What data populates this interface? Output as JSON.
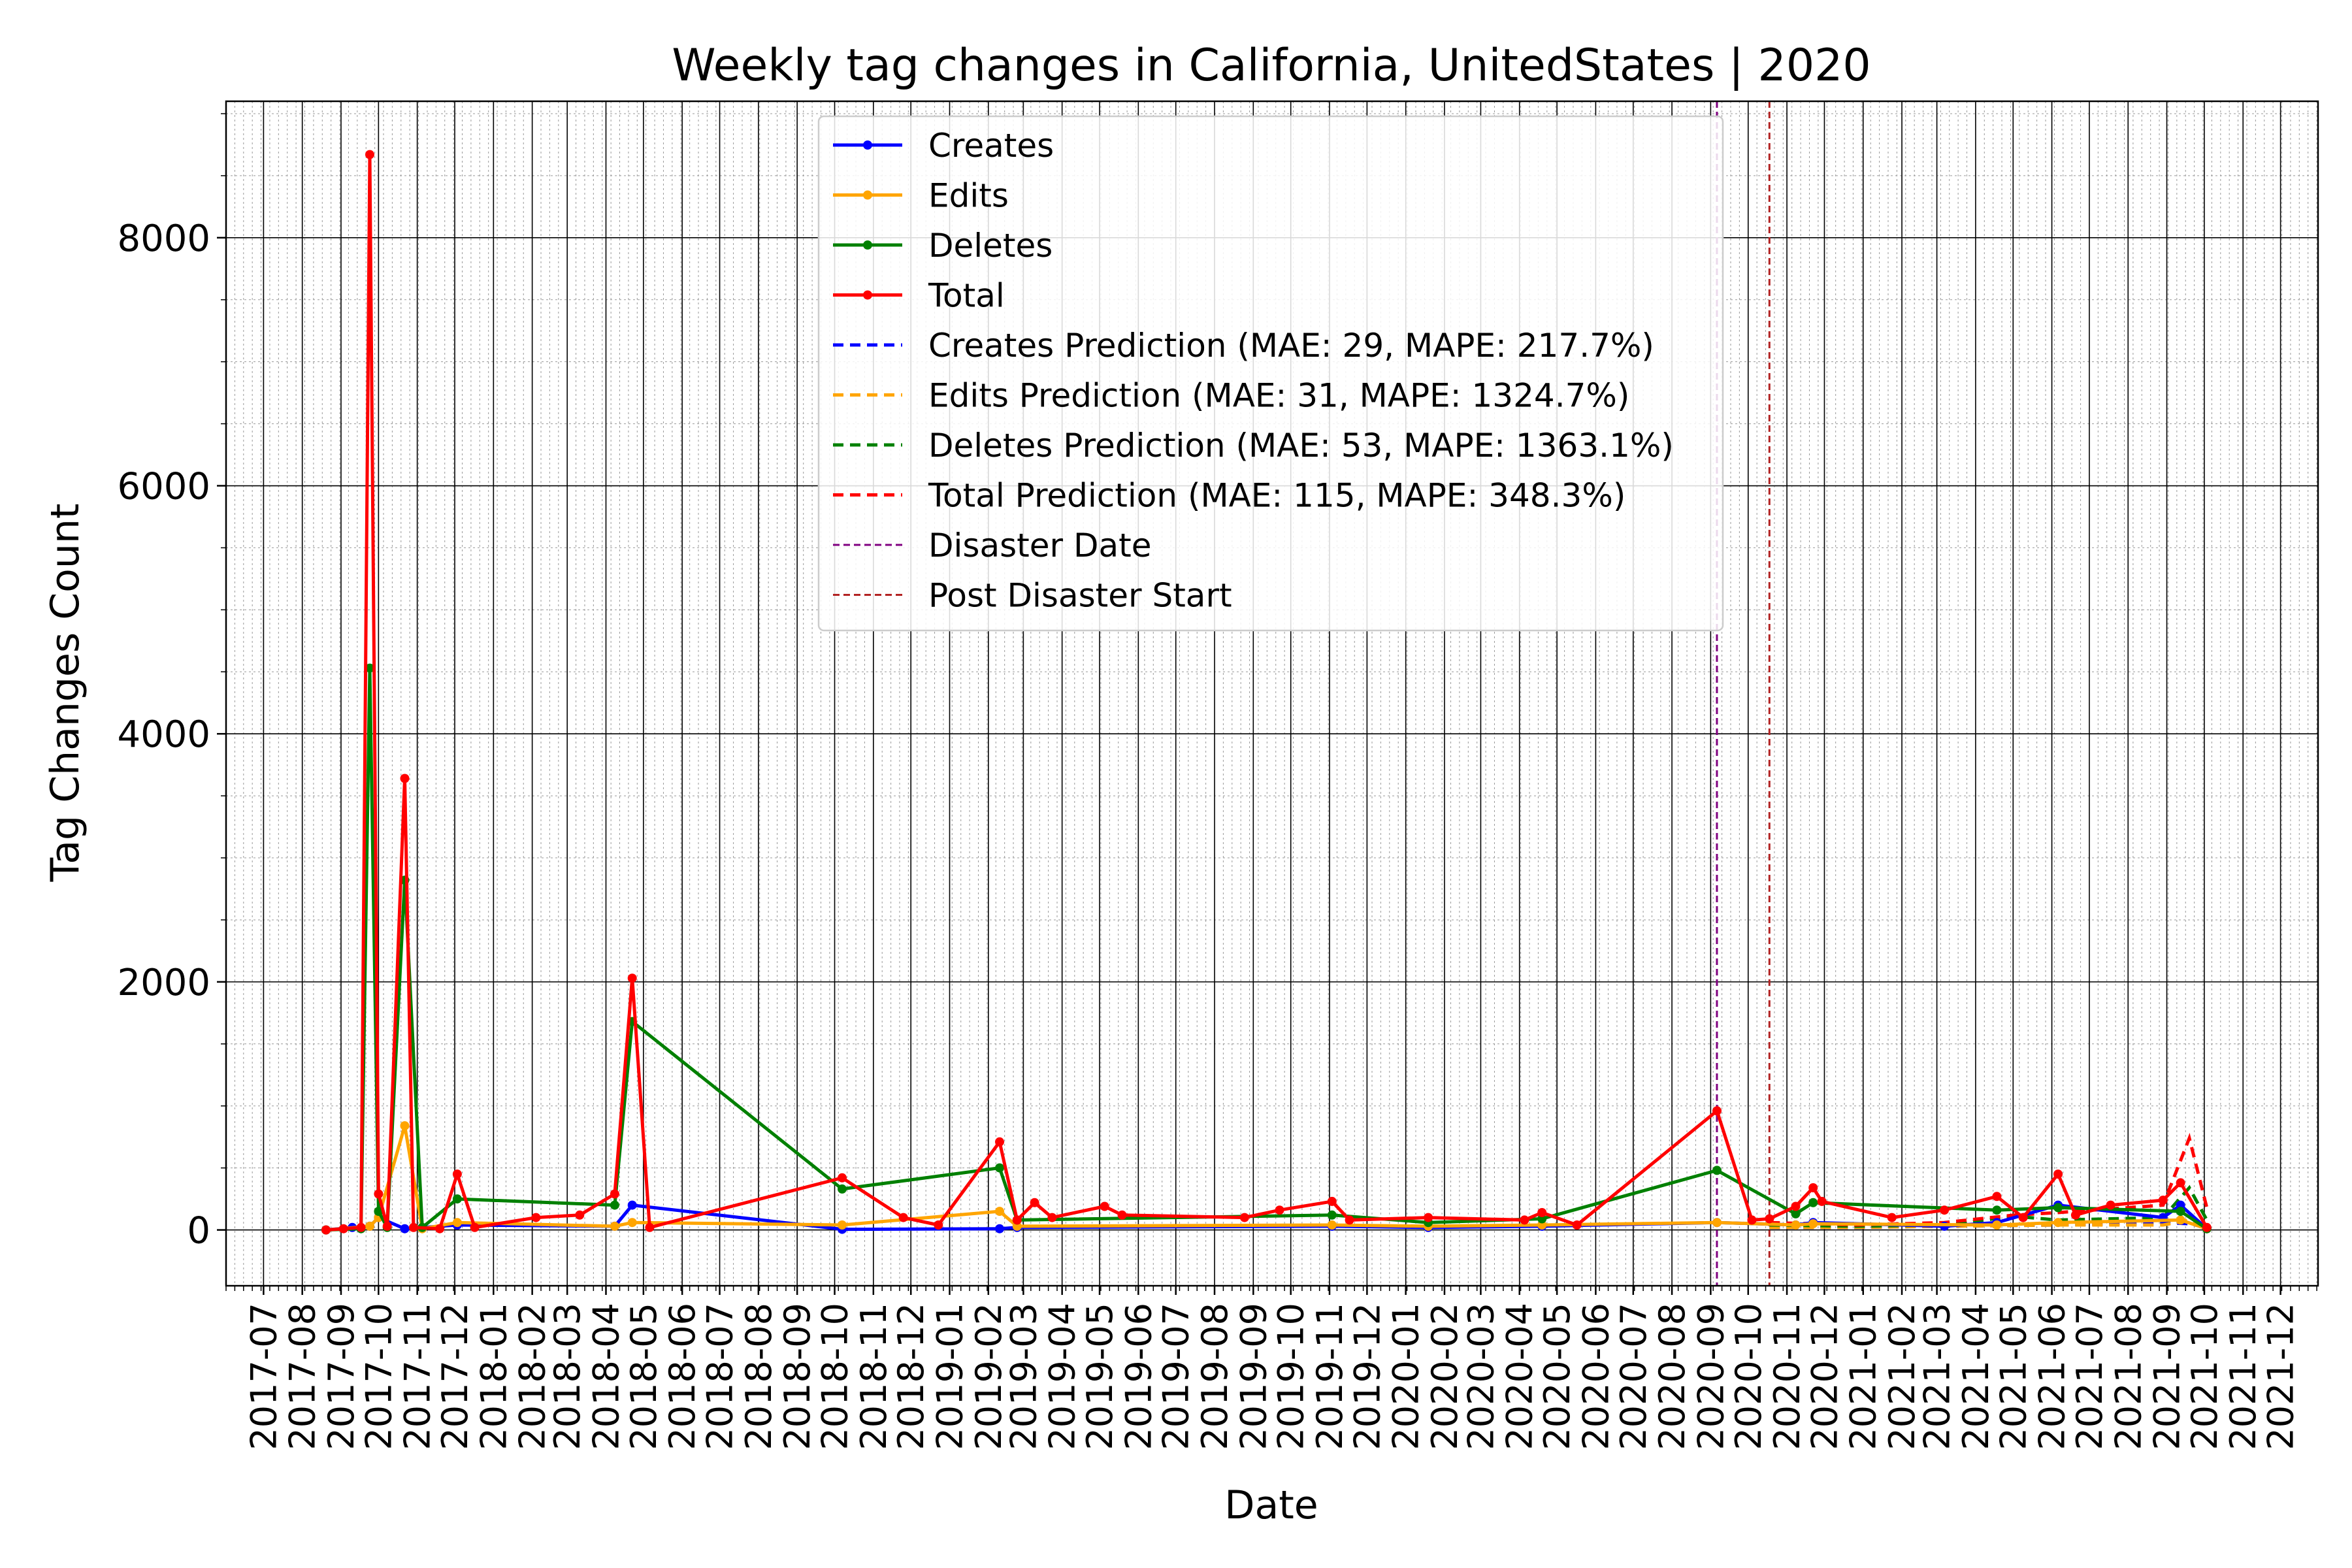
{
  "chart_data": {
    "type": "line",
    "title": "Weekly tag changes in California, UnitedStates | 2020",
    "xlabel": "Date",
    "ylabel": "Tag Changes Count",
    "ylim": [
      -450,
      9100
    ],
    "xlim": [
      "2017-06-01",
      "2021-12-31"
    ],
    "yticks": [
      0,
      2000,
      4000,
      6000,
      8000
    ],
    "xticks": [
      "2017-07",
      "2017-08",
      "2017-09",
      "2017-10",
      "2017-11",
      "2017-12",
      "2018-01",
      "2018-02",
      "2018-03",
      "2018-04",
      "2018-05",
      "2018-06",
      "2018-07",
      "2018-08",
      "2018-09",
      "2018-10",
      "2018-11",
      "2018-12",
      "2019-01",
      "2019-02",
      "2019-03",
      "2019-04",
      "2019-05",
      "2019-06",
      "2019-07",
      "2019-08",
      "2019-09",
      "2019-10",
      "2019-11",
      "2019-12",
      "2020-01",
      "2020-02",
      "2020-03",
      "2020-04",
      "2020-05",
      "2020-06",
      "2020-07",
      "2020-08",
      "2020-09",
      "2020-10",
      "2020-11",
      "2020-12",
      "2021-01",
      "2021-02",
      "2021-03",
      "2021-04",
      "2021-05",
      "2021-06",
      "2021-07",
      "2021-08",
      "2021-09",
      "2021-10",
      "2021-11",
      "2021-12"
    ],
    "grid": true,
    "legend_placement": "upper-center",
    "disaster_date": "2020-09-06",
    "post_disaster_start": "2020-10-18",
    "series": [
      {
        "name": "Creates",
        "color": "#0000ff",
        "style": "solid-marker",
        "points": [
          [
            "2017-08-20",
            0
          ],
          [
            "2017-09-10",
            20
          ],
          [
            "2017-09-24",
            30
          ],
          [
            "2017-10-01",
            100
          ],
          [
            "2017-10-22",
            10
          ],
          [
            "2017-12-03",
            40
          ],
          [
            "2018-04-08",
            30
          ],
          [
            "2018-04-22",
            200
          ],
          [
            "2018-10-07",
            5
          ],
          [
            "2019-02-10",
            10
          ],
          [
            "2019-02-24",
            20
          ],
          [
            "2019-11-03",
            30
          ],
          [
            "2020-01-19",
            20
          ],
          [
            "2020-04-19",
            30
          ],
          [
            "2020-09-06",
            60
          ],
          [
            "2020-11-08",
            40
          ],
          [
            "2020-11-22",
            60
          ],
          [
            "2021-03-07",
            30
          ],
          [
            "2021-04-18",
            60
          ],
          [
            "2021-06-06",
            200
          ],
          [
            "2021-08-29",
            100
          ],
          [
            "2021-09-12",
            200
          ],
          [
            "2021-10-03",
            10
          ]
        ]
      },
      {
        "name": "Edits",
        "color": "#ffa500",
        "style": "solid-marker",
        "points": [
          [
            "2017-08-20",
            0
          ],
          [
            "2017-09-24",
            30
          ],
          [
            "2017-10-01",
            100
          ],
          [
            "2017-10-22",
            840
          ],
          [
            "2017-11-05",
            10
          ],
          [
            "2017-12-03",
            60
          ],
          [
            "2018-04-08",
            30
          ],
          [
            "2018-04-22",
            60
          ],
          [
            "2018-10-07",
            40
          ],
          [
            "2019-02-10",
            150
          ],
          [
            "2019-02-24",
            30
          ],
          [
            "2019-11-03",
            40
          ],
          [
            "2020-01-19",
            30
          ],
          [
            "2020-04-19",
            40
          ],
          [
            "2020-09-06",
            60
          ],
          [
            "2020-11-08",
            40
          ],
          [
            "2020-11-22",
            50
          ],
          [
            "2021-04-18",
            40
          ],
          [
            "2021-06-06",
            60
          ],
          [
            "2021-09-12",
            80
          ],
          [
            "2021-10-03",
            10
          ]
        ]
      },
      {
        "name": "Deletes",
        "color": "#008000",
        "style": "solid-marker",
        "points": [
          [
            "2017-08-20",
            0
          ],
          [
            "2017-09-17",
            10
          ],
          [
            "2017-09-24",
            4530
          ],
          [
            "2017-10-01",
            150
          ],
          [
            "2017-10-08",
            20
          ],
          [
            "2017-10-22",
            2820
          ],
          [
            "2017-11-05",
            20
          ],
          [
            "2017-12-03",
            250
          ],
          [
            "2018-04-08",
            200
          ],
          [
            "2018-04-22",
            1680
          ],
          [
            "2018-10-07",
            330
          ],
          [
            "2019-02-10",
            500
          ],
          [
            "2019-02-24",
            80
          ],
          [
            "2019-11-03",
            120
          ],
          [
            "2020-01-19",
            60
          ],
          [
            "2020-04-19",
            90
          ],
          [
            "2020-09-06",
            480
          ],
          [
            "2020-11-08",
            130
          ],
          [
            "2020-11-22",
            220
          ],
          [
            "2021-04-18",
            160
          ],
          [
            "2021-06-06",
            180
          ],
          [
            "2021-09-12",
            150
          ],
          [
            "2021-10-03",
            10
          ]
        ]
      },
      {
        "name": "Total",
        "color": "#ff0000",
        "style": "solid-marker",
        "points": [
          [
            "2017-08-20",
            0
          ],
          [
            "2017-09-03",
            10
          ],
          [
            "2017-09-17",
            20
          ],
          [
            "2017-09-24",
            8670
          ],
          [
            "2017-10-01",
            290
          ],
          [
            "2017-10-08",
            30
          ],
          [
            "2017-10-22",
            3640
          ],
          [
            "2017-10-29",
            20
          ],
          [
            "2017-11-19",
            10
          ],
          [
            "2017-12-03",
            450
          ],
          [
            "2017-12-17",
            20
          ],
          [
            "2018-02-04",
            100
          ],
          [
            "2018-03-11",
            120
          ],
          [
            "2018-04-08",
            290
          ],
          [
            "2018-04-22",
            2030
          ],
          [
            "2018-05-06",
            20
          ],
          [
            "2018-10-07",
            420
          ],
          [
            "2018-11-25",
            100
          ],
          [
            "2018-12-23",
            40
          ],
          [
            "2019-02-10",
            710
          ],
          [
            "2019-02-24",
            80
          ],
          [
            "2019-03-10",
            220
          ],
          [
            "2019-03-24",
            100
          ],
          [
            "2019-05-05",
            190
          ],
          [
            "2019-05-19",
            120
          ],
          [
            "2019-08-25",
            100
          ],
          [
            "2019-09-22",
            160
          ],
          [
            "2019-11-03",
            230
          ],
          [
            "2019-11-17",
            80
          ],
          [
            "2020-01-19",
            100
          ],
          [
            "2020-04-05",
            80
          ],
          [
            "2020-04-19",
            140
          ],
          [
            "2020-05-17",
            40
          ],
          [
            "2020-09-06",
            960
          ],
          [
            "2020-10-04",
            80
          ],
          [
            "2020-10-18",
            90
          ],
          [
            "2020-11-08",
            190
          ],
          [
            "2020-11-22",
            340
          ],
          [
            "2020-11-29",
            230
          ],
          [
            "2021-01-24",
            100
          ],
          [
            "2021-03-07",
            160
          ],
          [
            "2021-04-18",
            270
          ],
          [
            "2021-05-09",
            100
          ],
          [
            "2021-06-06",
            450
          ],
          [
            "2021-06-20",
            120
          ],
          [
            "2021-07-18",
            200
          ],
          [
            "2021-08-29",
            240
          ],
          [
            "2021-09-12",
            380
          ],
          [
            "2021-10-03",
            20
          ]
        ]
      },
      {
        "name": "Creates Prediction (MAE: 29, MAPE: 217.7%)",
        "color": "#0000ff",
        "style": "dashed",
        "points": [
          [
            "2020-10-18",
            20
          ],
          [
            "2020-12-27",
            20
          ],
          [
            "2021-03-07",
            30
          ],
          [
            "2021-06-06",
            40
          ],
          [
            "2021-08-29",
            60
          ],
          [
            "2021-09-19",
            50
          ],
          [
            "2021-10-03",
            20
          ]
        ]
      },
      {
        "name": "Edits Prediction (MAE: 31, MAPE: 1324.7%)",
        "color": "#ffa500",
        "style": "dashed",
        "points": [
          [
            "2020-10-18",
            20
          ],
          [
            "2020-12-27",
            20
          ],
          [
            "2021-03-07",
            30
          ],
          [
            "2021-06-06",
            40
          ],
          [
            "2021-08-29",
            40
          ],
          [
            "2021-09-19",
            80
          ],
          [
            "2021-10-03",
            30
          ]
        ]
      },
      {
        "name": "Deletes Prediction (MAE: 53, MAPE: 1363.1%)",
        "color": "#008000",
        "style": "dashed",
        "points": [
          [
            "2020-10-18",
            40
          ],
          [
            "2020-12-27",
            30
          ],
          [
            "2021-03-07",
            40
          ],
          [
            "2021-05-02",
            110
          ],
          [
            "2021-06-06",
            80
          ],
          [
            "2021-08-29",
            100
          ],
          [
            "2021-09-19",
            340
          ],
          [
            "2021-10-03",
            80
          ]
        ]
      },
      {
        "name": "Total Prediction (MAE: 115, MAPE: 348.3%)",
        "color": "#ff0000",
        "style": "dashed",
        "points": [
          [
            "2020-10-18",
            60
          ],
          [
            "2020-12-27",
            40
          ],
          [
            "2021-03-07",
            60
          ],
          [
            "2021-05-02",
            120
          ],
          [
            "2021-06-06",
            140
          ],
          [
            "2021-08-29",
            200
          ],
          [
            "2021-09-19",
            740
          ],
          [
            "2021-10-03",
            180
          ]
        ]
      },
      {
        "name": "Disaster Date",
        "color": "#800080",
        "style": "vline"
      },
      {
        "name": "Post Disaster Start",
        "color": "#b22222",
        "style": "vline"
      }
    ]
  }
}
